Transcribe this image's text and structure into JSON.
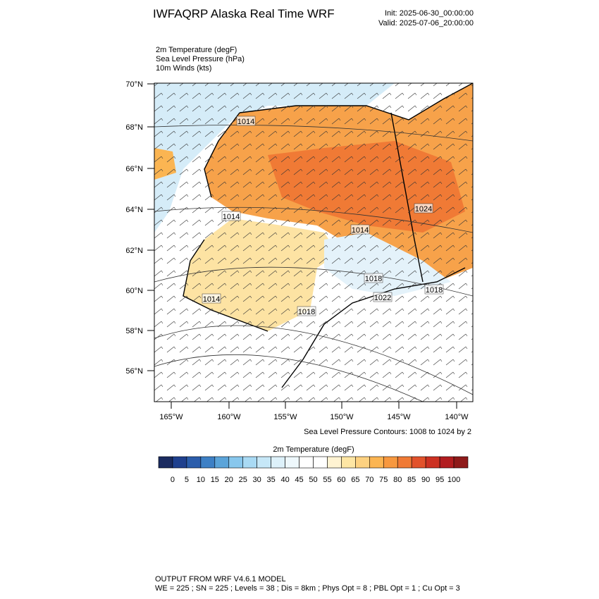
{
  "header": {
    "title": "IWFAQRP Alaska Real Time WRF",
    "init": "Init: 2025-06-30_00:00:00",
    "valid": "Valid: 2025-07-06_20:00:00"
  },
  "fields": [
    "2m Temperature   (degF)",
    "Sea Level Pressure   (hPa)",
    "10m Winds   (kts)"
  ],
  "map": {
    "lat_labels": [
      "70°N",
      "68°N",
      "66°N",
      "64°N",
      "62°N",
      "60°N",
      "58°N",
      "56°N"
    ],
    "lon_labels": [
      "165°W",
      "160°W",
      "155°W",
      "150°W",
      "145°W",
      "140°W"
    ],
    "contour_labels": [
      "1014",
      "1014",
      "1014",
      "1014",
      "1024",
      "1018",
      "1018",
      "1022",
      "1018"
    ]
  },
  "contour_note": "Sea Level Pressure Contours: 1008 to 1024 by 2",
  "colorbar": {
    "title": "2m Temperature  (degF)",
    "colors": [
      "#1b2b60",
      "#1f408e",
      "#2b5dab",
      "#3d80c5",
      "#5ba4d9",
      "#88c7ed",
      "#a9daf4",
      "#c6e7f7",
      "#ddf1fa",
      "#eef8fc",
      "#ffffff",
      "#ffffff",
      "#fff3d2",
      "#fee6a4",
      "#fdd180",
      "#fbb552",
      "#f7983f",
      "#f07a35",
      "#e2522b",
      "#cc3122",
      "#b21d20",
      "#8e1a1a"
    ],
    "labels": [
      "0",
      "5",
      "10",
      "15",
      "20",
      "25",
      "30",
      "35",
      "40",
      "45",
      "50",
      "55",
      "60",
      "65",
      "70",
      "75",
      "80",
      "85",
      "90",
      "95",
      "100"
    ]
  },
  "footer": [
    "OUTPUT FROM WRF V4.6.1 MODEL",
    "WE = 225 ; SN = 225 ; Levels = 38 ; Dis = 8km ; Phys Opt = 8 ; PBL Opt = 1 ; Cu Opt = 3"
  ]
}
